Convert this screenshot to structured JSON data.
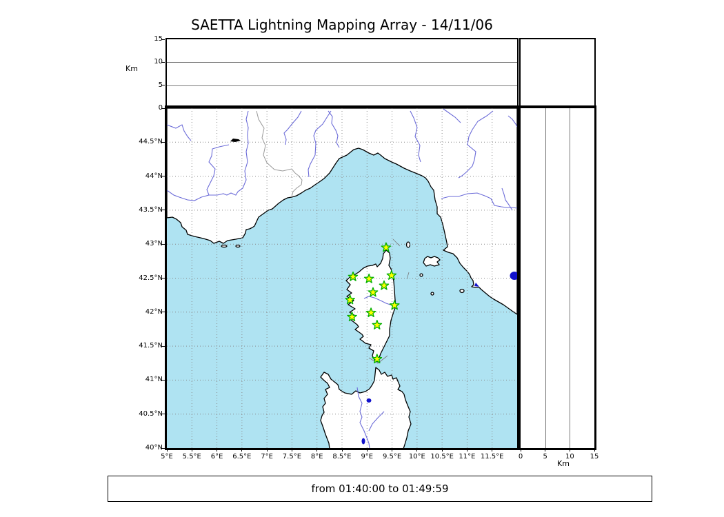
{
  "title": "SAETTA Lightning Mapping Array - 14/11/06",
  "footer": {
    "time_range": "from 01:40:00 to 01:49:59"
  },
  "axes": {
    "altitude": {
      "unit_label": "Km",
      "min": 0,
      "max": 15,
      "tick_values": [
        0,
        5,
        10,
        15
      ],
      "tick_labels": [
        "0",
        "5",
        "10",
        "15"
      ],
      "grid_values": [
        5,
        10
      ]
    },
    "longitude": {
      "min": 5,
      "max": 12,
      "tick_values": [
        5,
        5.5,
        6,
        6.5,
        7,
        7.5,
        8,
        8.5,
        9,
        9.5,
        10,
        10.5,
        11,
        11.5
      ],
      "tick_labels": [
        "5°E",
        "5.5°E",
        "6°E",
        "6.5°E",
        "7°E",
        "7.5°E",
        "8°E",
        "8.5°E",
        "9°E",
        "9.5°E",
        "10°E",
        "10.5°E",
        "11°E",
        "11.5°E"
      ]
    },
    "latitude": {
      "min": 40,
      "max": 45,
      "tick_values": [
        40,
        40.5,
        41,
        41.5,
        42,
        42.5,
        43,
        43.5,
        44,
        44.5
      ],
      "tick_labels": [
        "40°N",
        "40.5°N",
        "41°N",
        "41.5°N",
        "42°N",
        "42.5°N",
        "43°N",
        "43.5°N",
        "44°N",
        "44.5°N"
      ]
    }
  },
  "stations": {
    "marker": "star",
    "points": [
      {
        "lon": 9.38,
        "lat": 42.95
      },
      {
        "lon": 8.72,
        "lat": 42.52
      },
      {
        "lon": 9.04,
        "lat": 42.49
      },
      {
        "lon": 9.49,
        "lat": 42.54
      },
      {
        "lon": 9.34,
        "lat": 42.39
      },
      {
        "lon": 9.12,
        "lat": 42.29
      },
      {
        "lon": 8.66,
        "lat": 42.18
      },
      {
        "lon": 8.7,
        "lat": 41.93
      },
      {
        "lon": 9.08,
        "lat": 41.99
      },
      {
        "lon": 9.55,
        "lat": 42.1
      },
      {
        "lon": 9.2,
        "lat": 41.81
      },
      {
        "lon": 9.2,
        "lat": 41.31
      }
    ]
  },
  "colors": {
    "sea": "#AFE3F2",
    "land": "#FFFFFF",
    "coast": "#000000",
    "grid": "#888888",
    "river": "#6B6BD8",
    "lake": "#1111CC",
    "country_border": "#999999",
    "station_fill": "#FFFF00",
    "station_edge": "#00AF00"
  }
}
